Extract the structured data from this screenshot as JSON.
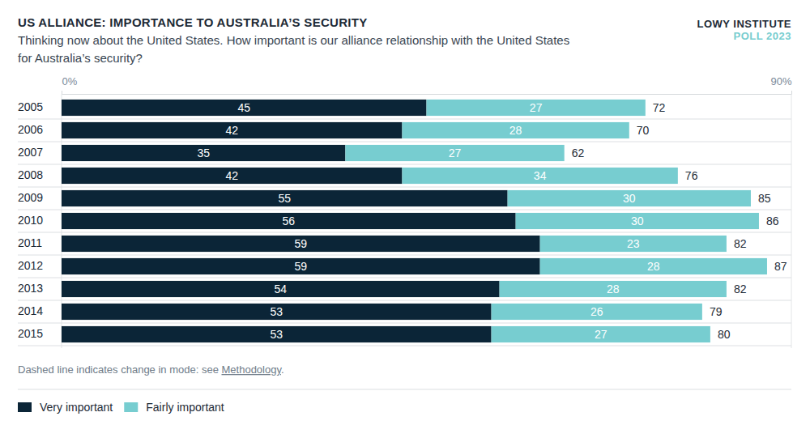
{
  "chart_data": {
    "type": "bar",
    "orientation": "horizontal",
    "stacked": true,
    "data_labels": true,
    "grid": true,
    "legend": "bottom-left",
    "title": "US ALLIANCE: IMPORTANCE TO AUSTRALIA’S SECURITY",
    "subtitle": [
      "Thinking now about the United States. How important is our alliance relationship with the United States",
      "for Australia’s security?"
    ],
    "publisher": "LOWY INSTITUTE",
    "edition": "POLL 2023",
    "note": [
      "Dashed line indicates change in mode: see ",
      "Methodology",
      "."
    ],
    "categories": [
      "2005",
      "2006",
      "2007",
      "2008",
      "2009",
      "2010",
      "2011",
      "2012",
      "2013",
      "2014",
      "2015"
    ],
    "series": [
      {
        "name": "Very important",
        "color": "#0b2537",
        "values": [
          45,
          42,
          35,
          42,
          55,
          56,
          59,
          59,
          54,
          53,
          53
        ]
      },
      {
        "name": "Fairly important",
        "color": "#77cdd0",
        "values": [
          27,
          28,
          27,
          34,
          30,
          30,
          23,
          28,
          28,
          26,
          27
        ]
      }
    ],
    "totals": [
      72,
      70,
      62,
      76,
      85,
      86,
      82,
      87,
      82,
      79,
      80
    ],
    "xlim": [
      0,
      90
    ],
    "xticks": [
      {
        "value": 0,
        "label": "0%"
      },
      {
        "value": 90,
        "label": "90%"
      }
    ]
  }
}
